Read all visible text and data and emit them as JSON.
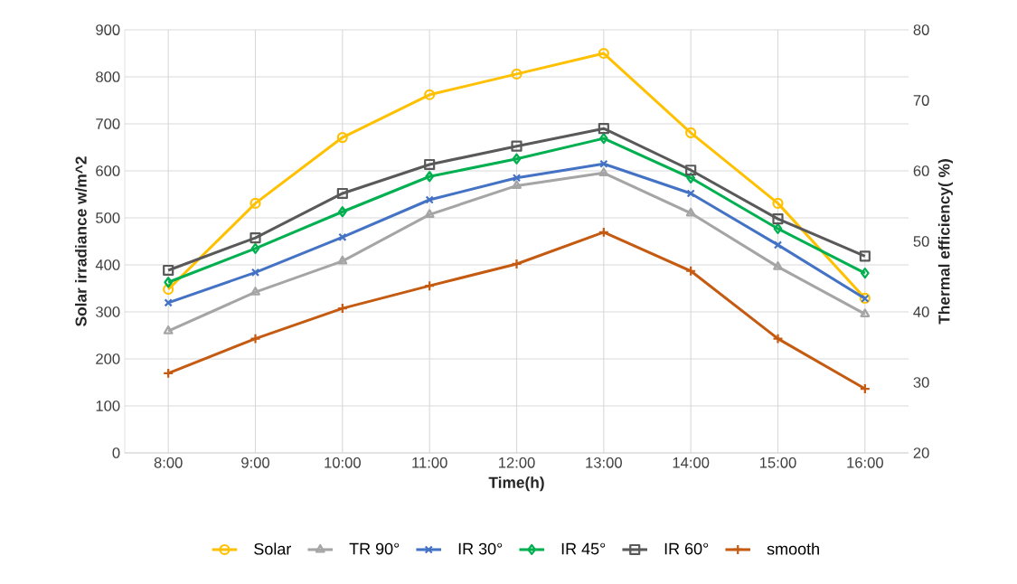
{
  "chart_data": {
    "type": "line",
    "xlabel": "Time(h)",
    "ylabel": "Solar irradiance w/m^2",
    "y2label": "Thermal efficiency( %)",
    "categories": [
      "8:00",
      "9:00",
      "10:00",
      "11:00",
      "12:00",
      "13:00",
      "14:00",
      "15:00",
      "16:00"
    ],
    "ylim": [
      0,
      900
    ],
    "yticks": [
      0,
      100,
      200,
      300,
      400,
      500,
      600,
      700,
      800,
      900
    ],
    "y2lim": [
      20,
      80
    ],
    "y2ticks": [
      20,
      30,
      40,
      50,
      60,
      70,
      80
    ],
    "grid": true,
    "legend": "bottom",
    "line_style": "solid",
    "series": [
      {
        "name": "Solar",
        "color": "#ffc000",
        "marker": "circle",
        "values": [
          348,
          531,
          671,
          762,
          806,
          850,
          681,
          531,
          329
        ]
      },
      {
        "name": "TR 90°",
        "color": "#a5a5a5",
        "marker": "triangle",
        "axis": "y2",
        "values": [
          37.3,
          42.8,
          47.2,
          53.8,
          57.9,
          59.7,
          54.0,
          46.4,
          39.7
        ]
      },
      {
        "name": "IR 30°",
        "color": "#4472c4",
        "marker": "cross",
        "axis": "y2",
        "values": [
          41.3,
          45.6,
          50.6,
          55.9,
          59.0,
          61.0,
          56.8,
          49.5,
          41.9
        ]
      },
      {
        "name": "IR 45°",
        "color": "#00b050",
        "marker": "diamond",
        "axis": "y2",
        "values": [
          44.2,
          49.0,
          54.2,
          59.2,
          61.7,
          64.6,
          59.0,
          51.8,
          45.5
        ]
      },
      {
        "name": "IR 60°",
        "color": "#595959",
        "marker": "square",
        "axis": "y2",
        "values": [
          45.9,
          50.5,
          56.8,
          60.9,
          63.5,
          66.0,
          60.1,
          53.2,
          47.9
        ]
      },
      {
        "name": "smooth",
        "color": "#c55a11",
        "marker": "plus",
        "axis": "y2",
        "values": [
          31.3,
          36.2,
          40.5,
          43.7,
          46.8,
          51.3,
          45.8,
          36.2,
          29.1
        ]
      }
    ]
  }
}
